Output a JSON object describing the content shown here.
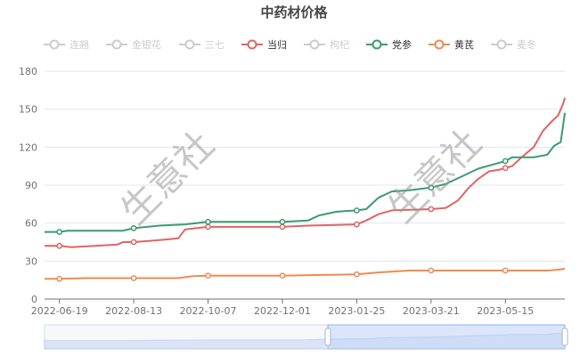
{
  "chart_data": {
    "type": "line",
    "title": "中药材价格",
    "watermark": "生意社",
    "y_ticks": [
      0,
      30,
      60,
      90,
      120,
      150,
      180
    ],
    "ylim": [
      0,
      180
    ],
    "x_ticks": [
      "2022-06-19",
      "2022-08-13",
      "2022-10-07",
      "2022-12-01",
      "2023-01-25",
      "2023-03-21",
      "2023-05-15"
    ],
    "xlim": [
      "2022-06-08",
      "2023-06-28"
    ],
    "legend_position": "top-center",
    "grid": true,
    "data_zoom": true,
    "legend": [
      {
        "name": "连翘",
        "color": "#cccccc",
        "active": false
      },
      {
        "name": "金银花",
        "color": "#cccccc",
        "active": false
      },
      {
        "name": "三七",
        "color": "#cccccc",
        "active": false
      },
      {
        "name": "当归",
        "color": "#e06464",
        "active": true
      },
      {
        "name": "枸杞",
        "color": "#cccccc",
        "active": false
      },
      {
        "name": "党参",
        "color": "#3c9a6e",
        "active": true
      },
      {
        "name": "黄芪",
        "color": "#ef8a52",
        "active": true
      },
      {
        "name": "麦冬",
        "color": "#cccccc",
        "active": false
      }
    ],
    "series": [
      {
        "name": "当归",
        "color": "#e06464",
        "points": [
          [
            "2022-06-08",
            42
          ],
          [
            "2022-06-19",
            42
          ],
          [
            "2022-06-28",
            41
          ],
          [
            "2022-07-15",
            42
          ],
          [
            "2022-08-01",
            43
          ],
          [
            "2022-08-05",
            45
          ],
          [
            "2022-08-13",
            45
          ],
          [
            "2022-08-25",
            46
          ],
          [
            "2022-09-05",
            47
          ],
          [
            "2022-09-15",
            48
          ],
          [
            "2022-09-20",
            55
          ],
          [
            "2022-10-07",
            57
          ],
          [
            "2022-11-01",
            57
          ],
          [
            "2022-12-01",
            57
          ],
          [
            "2022-12-20",
            58
          ],
          [
            "2023-01-25",
            59
          ],
          [
            "2023-02-01",
            62
          ],
          [
            "2023-02-10",
            67
          ],
          [
            "2023-02-20",
            70
          ],
          [
            "2023-03-21",
            71
          ],
          [
            "2023-04-01",
            72
          ],
          [
            "2023-04-10",
            78
          ],
          [
            "2023-04-18",
            88
          ],
          [
            "2023-04-25",
            95
          ],
          [
            "2023-05-03",
            101
          ],
          [
            "2023-05-10",
            102
          ],
          [
            "2023-05-20",
            105
          ],
          [
            "2023-05-27",
            112
          ],
          [
            "2023-06-05",
            120
          ],
          [
            "2023-06-12",
            133
          ],
          [
            "2023-06-18",
            140
          ],
          [
            "2023-06-23",
            145
          ],
          [
            "2023-06-27",
            155
          ],
          [
            "2023-06-28",
            159
          ]
        ],
        "markers": [
          "2022-06-19",
          "2022-08-13",
          "2022-10-07",
          "2022-12-01",
          "2023-01-25",
          "2023-03-21",
          "2023-05-15"
        ]
      },
      {
        "name": "党参",
        "color": "#3c9a6e",
        "points": [
          [
            "2022-06-08",
            53
          ],
          [
            "2022-06-19",
            53
          ],
          [
            "2022-06-25",
            54
          ],
          [
            "2022-08-05",
            54
          ],
          [
            "2022-08-13",
            56
          ],
          [
            "2022-09-01",
            58
          ],
          [
            "2022-09-20",
            59
          ],
          [
            "2022-10-07",
            61
          ],
          [
            "2022-11-01",
            61
          ],
          [
            "2022-12-01",
            61
          ],
          [
            "2022-12-20",
            62
          ],
          [
            "2022-12-28",
            66
          ],
          [
            "2023-01-10",
            69
          ],
          [
            "2023-01-25",
            70
          ],
          [
            "2023-02-01",
            71
          ],
          [
            "2023-02-10",
            80
          ],
          [
            "2023-02-20",
            85
          ],
          [
            "2023-03-05",
            86
          ],
          [
            "2023-03-21",
            88
          ],
          [
            "2023-04-01",
            91
          ],
          [
            "2023-04-15",
            98
          ],
          [
            "2023-04-25",
            103
          ],
          [
            "2023-05-05",
            106
          ],
          [
            "2023-05-15",
            109
          ],
          [
            "2023-05-20",
            112
          ],
          [
            "2023-06-05",
            112
          ],
          [
            "2023-06-15",
            114
          ],
          [
            "2023-06-20",
            121
          ],
          [
            "2023-06-25",
            124
          ],
          [
            "2023-06-28",
            147
          ]
        ],
        "markers": [
          "2022-06-19",
          "2022-08-13",
          "2022-10-07",
          "2022-12-01",
          "2023-01-25",
          "2023-03-21",
          "2023-05-15"
        ]
      },
      {
        "name": "黄芪",
        "color": "#ef8a52",
        "points": [
          [
            "2022-06-08",
            16
          ],
          [
            "2022-06-19",
            16
          ],
          [
            "2022-07-10",
            16.5
          ],
          [
            "2022-08-13",
            16.5
          ],
          [
            "2022-09-15",
            16.5
          ],
          [
            "2022-09-25",
            18
          ],
          [
            "2022-10-07",
            18.5
          ],
          [
            "2022-11-01",
            18.5
          ],
          [
            "2022-12-01",
            18.5
          ],
          [
            "2022-12-25",
            19
          ],
          [
            "2023-01-25",
            19.5
          ],
          [
            "2023-02-10",
            21
          ],
          [
            "2023-02-25",
            22
          ],
          [
            "2023-03-05",
            22.5
          ],
          [
            "2023-03-21",
            22.5
          ],
          [
            "2023-04-15",
            22.5
          ],
          [
            "2023-05-15",
            22.5
          ],
          [
            "2023-06-15",
            22.5
          ],
          [
            "2023-06-22",
            23
          ],
          [
            "2023-06-28",
            24
          ]
        ],
        "markers": [
          "2022-06-19",
          "2022-08-13",
          "2022-10-07",
          "2022-12-01",
          "2023-01-25",
          "2023-03-21",
          "2023-05-15"
        ]
      }
    ]
  }
}
